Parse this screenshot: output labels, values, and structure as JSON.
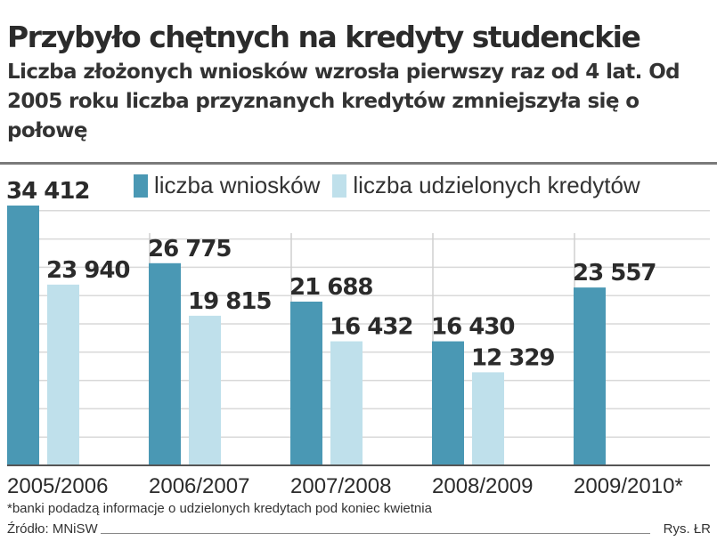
{
  "chart_data": {
    "type": "bar",
    "title": "Przybyło chętnych na kredyty studenckie",
    "subtitle": "Liczba złożonych wniosków wzrosła pierwszy raz od 4 lat. Od 2005 roku liczba przyznanych kredytów zmniejszyła się o połowę",
    "categories": [
      "2005/2006",
      "2006/2007",
      "2007/2008",
      "2008/2009",
      "2009/2010*"
    ],
    "series": [
      {
        "name": "liczba wniosków",
        "color": "#4a98b4",
        "values": [
          34412,
          26775,
          21688,
          16430,
          23557
        ],
        "labels": [
          "34 412",
          "26 775",
          "21 688",
          "16 430",
          "23 557"
        ]
      },
      {
        "name": "liczba udzielonych kredytów",
        "color": "#bfe0eb",
        "values": [
          23940,
          19815,
          16432,
          12329,
          null
        ],
        "labels": [
          "23 940",
          "19 815",
          "16 432",
          "12 329",
          ""
        ]
      }
    ],
    "ylim": [
      0,
      34412
    ],
    "grid": true,
    "legend_position": "top-right",
    "footnote": "*banki podadzą informacje o udzielonych kredytach pod koniec kwietnia",
    "source": "Źródło: MNiSW",
    "credit": "Rys. ŁR"
  }
}
